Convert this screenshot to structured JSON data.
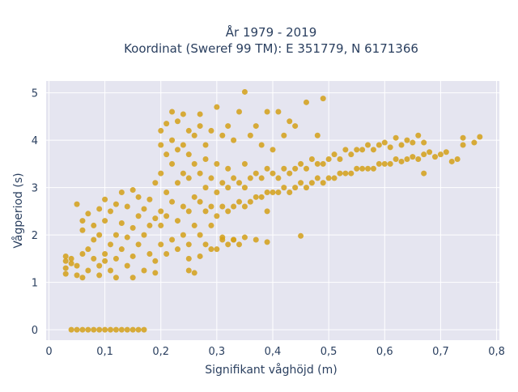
{
  "chart_data": {
    "type": "scatter",
    "title": "År 1979 - 2019",
    "subtitle": "Koordinat (Sweref 99 TM): E 351779, N 6171366",
    "xlabel": "Signifikant våghöjd (m)",
    "ylabel": "Vågperiod (s)",
    "xlim": [
      -0.005,
      0.805
    ],
    "ylim": [
      -0.22,
      5.25
    ],
    "x_ticks": [
      0,
      0.1,
      0.2,
      0.3,
      0.4,
      0.5,
      0.6,
      0.7,
      0.8
    ],
    "x_tick_labels": [
      "0",
      "0,1",
      "0,2",
      "0,3",
      "0,4",
      "0,5",
      "0,6",
      "0,7",
      "0,8"
    ],
    "y_ticks": [
      0,
      1,
      2,
      3,
      4,
      5
    ],
    "y_tick_labels": [
      "0",
      "1",
      "2",
      "3",
      "4",
      "5"
    ],
    "grid": true,
    "marker_color": "#D4A017",
    "background_color": "#E5E5F0",
    "series": [
      {
        "points": [
          [
            0.04,
            0
          ],
          [
            0.05,
            0
          ],
          [
            0.06,
            0
          ],
          [
            0.07,
            0
          ],
          [
            0.08,
            0
          ],
          [
            0.09,
            0
          ],
          [
            0.1,
            0
          ],
          [
            0.11,
            0
          ],
          [
            0.12,
            0
          ],
          [
            0.13,
            0
          ],
          [
            0.14,
            0
          ],
          [
            0.15,
            0
          ],
          [
            0.16,
            0
          ],
          [
            0.17,
            0
          ],
          [
            0.03,
            1.55
          ],
          [
            0.03,
            1.45
          ],
          [
            0.03,
            1.3
          ],
          [
            0.03,
            1.18
          ],
          [
            0.04,
            1.4
          ],
          [
            0.04,
            1.5
          ],
          [
            0.05,
            1.15
          ],
          [
            0.05,
            1.35
          ],
          [
            0.05,
            2.65
          ],
          [
            0.06,
            1.6
          ],
          [
            0.06,
            1.1
          ],
          [
            0.06,
            2.1
          ],
          [
            0.06,
            2.3
          ],
          [
            0.07,
            1.25
          ],
          [
            0.07,
            1.7
          ],
          [
            0.07,
            2.45
          ],
          [
            0.08,
            1.5
          ],
          [
            0.08,
            1.9
          ],
          [
            0.08,
            2.2
          ],
          [
            0.09,
            1.35
          ],
          [
            0.09,
            2.0
          ],
          [
            0.09,
            2.55
          ],
          [
            0.09,
            1.15
          ],
          [
            0.1,
            1.6
          ],
          [
            0.1,
            2.3
          ],
          [
            0.1,
            2.75
          ],
          [
            0.1,
            1.45
          ],
          [
            0.11,
            1.8
          ],
          [
            0.11,
            2.5
          ],
          [
            0.11,
            1.25
          ],
          [
            0.12,
            2.0
          ],
          [
            0.12,
            1.5
          ],
          [
            0.12,
            2.65
          ],
          [
            0.12,
            1.1
          ],
          [
            0.13,
            1.7
          ],
          [
            0.13,
            2.25
          ],
          [
            0.13,
            2.9
          ],
          [
            0.14,
            1.35
          ],
          [
            0.14,
            1.95
          ],
          [
            0.14,
            2.6
          ],
          [
            0.15,
            1.55
          ],
          [
            0.15,
            2.15
          ],
          [
            0.15,
            2.95
          ],
          [
            0.15,
            1.1
          ],
          [
            0.16,
            1.8
          ],
          [
            0.16,
            2.4
          ],
          [
            0.16,
            2.8
          ],
          [
            0.17,
            1.25
          ],
          [
            0.17,
            2.0
          ],
          [
            0.17,
            2.55
          ],
          [
            0.18,
            1.6
          ],
          [
            0.18,
            2.2
          ],
          [
            0.18,
            2.75
          ],
          [
            0.19,
            1.45
          ],
          [
            0.19,
            2.35
          ],
          [
            0.19,
            3.1
          ],
          [
            0.19,
            1.2
          ],
          [
            0.2,
            1.8
          ],
          [
            0.2,
            2.5
          ],
          [
            0.2,
            2.2
          ],
          [
            0.2,
            3.3
          ],
          [
            0.2,
            3.9
          ],
          [
            0.2,
            4.2
          ],
          [
            0.21,
            1.6
          ],
          [
            0.21,
            2.4
          ],
          [
            0.21,
            2.9
          ],
          [
            0.21,
            3.7
          ],
          [
            0.21,
            4.35
          ],
          [
            0.22,
            1.9
          ],
          [
            0.22,
            2.7
          ],
          [
            0.22,
            3.5
          ],
          [
            0.22,
            4.0
          ],
          [
            0.22,
            4.6
          ],
          [
            0.23,
            1.7
          ],
          [
            0.23,
            2.3
          ],
          [
            0.23,
            3.1
          ],
          [
            0.23,
            3.8
          ],
          [
            0.23,
            4.4
          ],
          [
            0.24,
            2.0
          ],
          [
            0.24,
            2.6
          ],
          [
            0.24,
            3.3
          ],
          [
            0.24,
            3.9
          ],
          [
            0.24,
            4.55
          ],
          [
            0.25,
            1.8
          ],
          [
            0.25,
            2.5
          ],
          [
            0.25,
            3.2
          ],
          [
            0.25,
            3.7
          ],
          [
            0.25,
            4.2
          ],
          [
            0.25,
            1.5
          ],
          [
            0.26,
            2.2
          ],
          [
            0.26,
            2.8
          ],
          [
            0.26,
            3.5
          ],
          [
            0.26,
            4.1
          ],
          [
            0.26,
            1.2
          ],
          [
            0.27,
            2.0
          ],
          [
            0.27,
            2.7
          ],
          [
            0.27,
            3.3
          ],
          [
            0.27,
            4.3
          ],
          [
            0.27,
            4.55
          ],
          [
            0.28,
            1.8
          ],
          [
            0.28,
            2.5
          ],
          [
            0.28,
            3.0
          ],
          [
            0.28,
            3.6
          ],
          [
            0.28,
            3.9
          ],
          [
            0.29,
            2.2
          ],
          [
            0.29,
            2.6
          ],
          [
            0.29,
            3.2
          ],
          [
            0.29,
            4.2
          ],
          [
            0.3,
            1.7
          ],
          [
            0.3,
            2.4
          ],
          [
            0.3,
            2.9
          ],
          [
            0.3,
            3.5
          ],
          [
            0.3,
            4.7
          ],
          [
            0.31,
            1.9
          ],
          [
            0.31,
            2.6
          ],
          [
            0.31,
            3.1
          ],
          [
            0.31,
            4.1
          ],
          [
            0.32,
            1.8
          ],
          [
            0.32,
            2.5
          ],
          [
            0.32,
            3.0
          ],
          [
            0.32,
            3.4
          ],
          [
            0.32,
            4.3
          ],
          [
            0.33,
            1.9
          ],
          [
            0.33,
            2.6
          ],
          [
            0.33,
            3.2
          ],
          [
            0.33,
            4.0
          ],
          [
            0.34,
            1.8
          ],
          [
            0.34,
            2.7
          ],
          [
            0.34,
            3.1
          ],
          [
            0.34,
            4.6
          ],
          [
            0.35,
            2.6
          ],
          [
            0.35,
            3.0
          ],
          [
            0.35,
            3.5
          ],
          [
            0.35,
            5.02
          ],
          [
            0.36,
            2.7
          ],
          [
            0.36,
            3.2
          ],
          [
            0.36,
            4.1
          ],
          [
            0.37,
            2.8
          ],
          [
            0.37,
            3.3
          ],
          [
            0.37,
            4.3
          ],
          [
            0.38,
            2.8
          ],
          [
            0.38,
            3.2
          ],
          [
            0.38,
            3.9
          ],
          [
            0.39,
            2.5
          ],
          [
            0.39,
            2.9
          ],
          [
            0.39,
            3.4
          ],
          [
            0.39,
            4.6
          ],
          [
            0.4,
            2.9
          ],
          [
            0.4,
            3.3
          ],
          [
            0.4,
            3.8
          ],
          [
            0.41,
            2.9
          ],
          [
            0.41,
            3.2
          ],
          [
            0.41,
            4.6
          ],
          [
            0.42,
            3.0
          ],
          [
            0.42,
            3.4
          ],
          [
            0.42,
            4.1
          ],
          [
            0.43,
            2.9
          ],
          [
            0.43,
            3.3
          ],
          [
            0.43,
            4.4
          ],
          [
            0.44,
            3.0
          ],
          [
            0.44,
            3.4
          ],
          [
            0.44,
            4.3
          ],
          [
            0.45,
            3.1
          ],
          [
            0.45,
            3.5
          ],
          [
            0.45,
            1.98
          ],
          [
            0.46,
            3.0
          ],
          [
            0.46,
            3.4
          ],
          [
            0.46,
            4.8
          ],
          [
            0.47,
            3.1
          ],
          [
            0.47,
            3.6
          ],
          [
            0.48,
            3.2
          ],
          [
            0.48,
            3.5
          ],
          [
            0.48,
            4.1
          ],
          [
            0.49,
            3.1
          ],
          [
            0.49,
            3.5
          ],
          [
            0.49,
            4.88
          ],
          [
            0.5,
            3.2
          ],
          [
            0.5,
            3.6
          ],
          [
            0.51,
            3.2
          ],
          [
            0.51,
            3.7
          ],
          [
            0.52,
            3.3
          ],
          [
            0.52,
            3.6
          ],
          [
            0.53,
            3.3
          ],
          [
            0.53,
            3.8
          ],
          [
            0.54,
            3.3
          ],
          [
            0.54,
            3.7
          ],
          [
            0.55,
            3.4
          ],
          [
            0.55,
            3.8
          ],
          [
            0.56,
            3.4
          ],
          [
            0.56,
            3.8
          ],
          [
            0.57,
            3.4
          ],
          [
            0.57,
            3.9
          ],
          [
            0.58,
            3.4
          ],
          [
            0.58,
            3.8
          ],
          [
            0.59,
            3.5
          ],
          [
            0.59,
            3.9
          ],
          [
            0.6,
            3.5
          ],
          [
            0.6,
            3.95
          ],
          [
            0.61,
            3.5
          ],
          [
            0.61,
            3.85
          ],
          [
            0.62,
            3.6
          ],
          [
            0.62,
            4.05
          ],
          [
            0.63,
            3.55
          ],
          [
            0.63,
            3.9
          ],
          [
            0.64,
            3.6
          ],
          [
            0.64,
            4.0
          ],
          [
            0.65,
            3.65
          ],
          [
            0.65,
            3.95
          ],
          [
            0.66,
            3.6
          ],
          [
            0.66,
            4.1
          ],
          [
            0.67,
            3.3
          ],
          [
            0.67,
            3.7
          ],
          [
            0.67,
            3.95
          ],
          [
            0.68,
            3.75
          ],
          [
            0.69,
            3.65
          ],
          [
            0.7,
            3.7
          ],
          [
            0.71,
            3.75
          ],
          [
            0.72,
            3.55
          ],
          [
            0.73,
            3.6
          ],
          [
            0.74,
            3.9
          ],
          [
            0.74,
            4.05
          ],
          [
            0.76,
            3.95
          ],
          [
            0.77,
            4.07
          ],
          [
            0.25,
            1.25
          ],
          [
            0.27,
            1.55
          ],
          [
            0.29,
            1.7
          ],
          [
            0.31,
            1.95
          ],
          [
            0.33,
            1.9
          ],
          [
            0.35,
            1.95
          ],
          [
            0.37,
            1.9
          ],
          [
            0.39,
            1.85
          ]
        ]
      }
    ]
  }
}
